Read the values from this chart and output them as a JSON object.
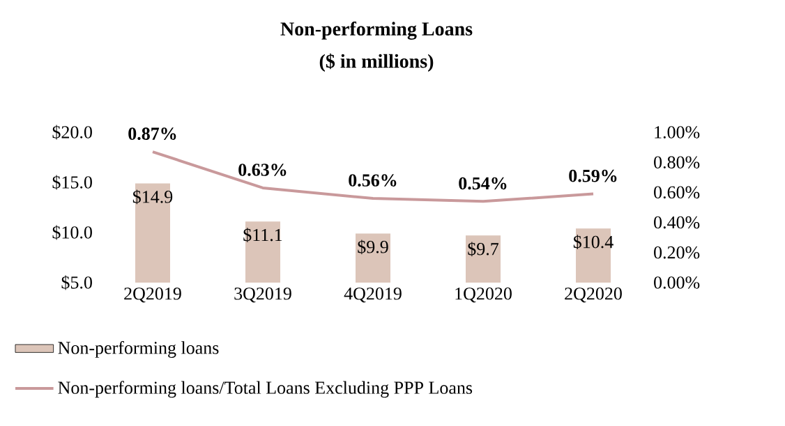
{
  "chart_data": {
    "type": "bar",
    "title": "Non-performing Loans",
    "subtitle": "($ in millions)",
    "categories": [
      "2Q2019",
      "3Q2019",
      "4Q2019",
      "1Q2020",
      "2Q2020"
    ],
    "series": [
      {
        "name": "Non-performing loans",
        "color": "#dcc5b9",
        "values": [
          14.9,
          11.1,
          9.9,
          9.7,
          10.4
        ],
        "value_labels": [
          "$14.9",
          "$11.1",
          "$9.9",
          "$9.7",
          "$10.4"
        ]
      },
      {
        "name": "Non-performing loans/Total Loans Excluding PPP Loans",
        "type": "line",
        "axis": "y2",
        "color": "#c9999b",
        "values": [
          0.87,
          0.63,
          0.56,
          0.54,
          0.59
        ],
        "value_labels": [
          "0.87%",
          "0.63%",
          "0.56%",
          "0.54%",
          "0.59%"
        ]
      }
    ],
    "ylim": [
      5,
      20
    ],
    "yticks": [
      {
        "value": 5,
        "label": "$5.0"
      },
      {
        "value": 10,
        "label": "$10.0"
      },
      {
        "value": 15,
        "label": "$15.0"
      },
      {
        "value": 20,
        "label": "$20.0"
      }
    ],
    "y2lim": [
      0,
      1
    ],
    "y2ticks": [
      {
        "value": 0,
        "label": "0.00%"
      },
      {
        "value": 0.2,
        "label": "0.20%"
      },
      {
        "value": 0.4,
        "label": "0.40%"
      },
      {
        "value": 0.6,
        "label": "0.60%"
      },
      {
        "value": 0.8,
        "label": "0.80%"
      },
      {
        "value": 1,
        "label": "1.00%"
      }
    ],
    "grid": false,
    "legend": "bottom",
    "marker": "none",
    "line_style": "solid"
  }
}
